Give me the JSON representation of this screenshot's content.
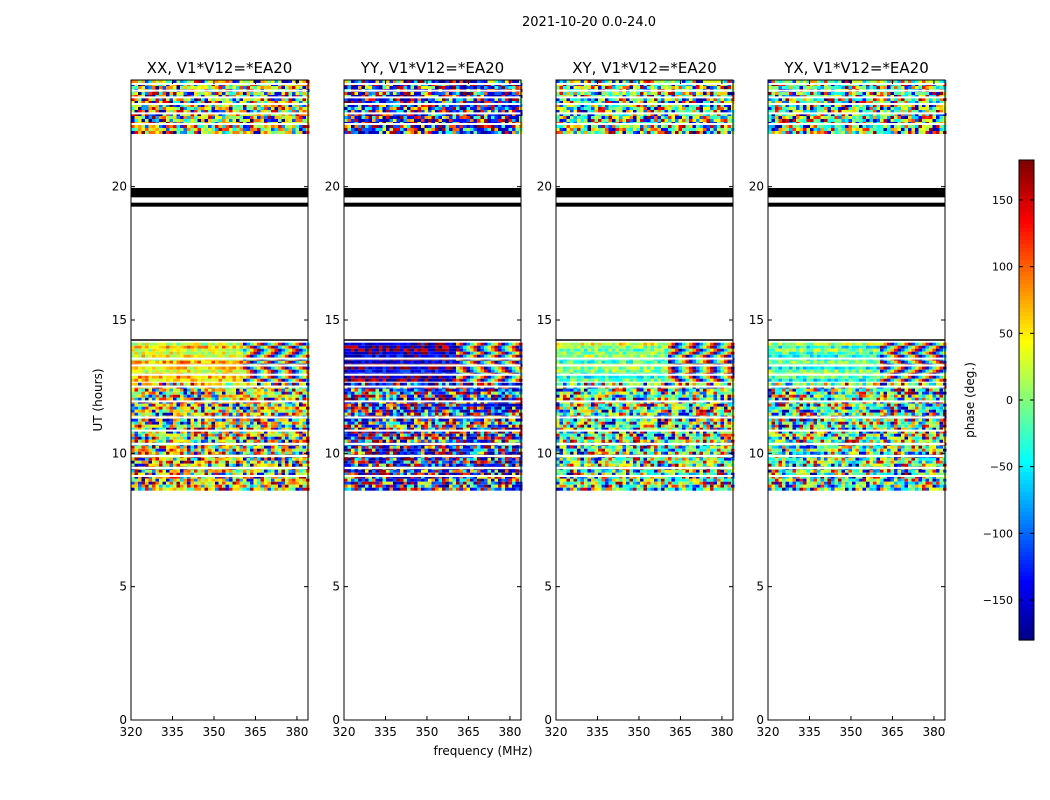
{
  "suptitle": "2021-10-20 0.0-24.0",
  "chart_data": {
    "type": "heatmap",
    "xlabel": "frequency (MHz)",
    "ylabel": "UT (hours)",
    "xlim": [
      320,
      384
    ],
    "ylim": [
      0,
      24
    ],
    "xticks": [
      320,
      335,
      350,
      365,
      380
    ],
    "yticks": [
      0,
      5,
      10,
      15,
      20
    ],
    "colorbar": {
      "label": "phase (deg.)",
      "range": [
        -180,
        180
      ],
      "ticks": [
        -150,
        -100,
        -50,
        0,
        50,
        100,
        150
      ],
      "colormap": "jet"
    },
    "panels": [
      {
        "name": "XX",
        "title": "XX, V1*V12=*EA20",
        "dominant_phase_deg": 45
      },
      {
        "name": "YY",
        "title": "YY, V1*V12=*EA20",
        "dominant_phase_deg": -155
      },
      {
        "name": "XY",
        "title": "XY, V1*V12=*EA20",
        "dominant_phase_deg": 0
      },
      {
        "name": "YX",
        "title": "YX, V1*V12=*EA20",
        "dominant_phase_deg": -10
      }
    ],
    "data_time_ranges_hours": [
      [
        8.6,
        12.65
      ],
      [
        12.8,
        14.15
      ],
      [
        22.05,
        24.0
      ]
    ],
    "solid_flag_bands_hours": [
      [
        19.6,
        19.95
      ],
      [
        19.25,
        19.4
      ]
    ],
    "separator_lines_hours": [
      9.15,
      9.45,
      9.9,
      10.35,
      10.85,
      11.35,
      11.95,
      12.5,
      12.95,
      13.3,
      13.55,
      14.3,
      22.35,
      22.75,
      23.1,
      23.35,
      23.6,
      23.85
    ]
  }
}
